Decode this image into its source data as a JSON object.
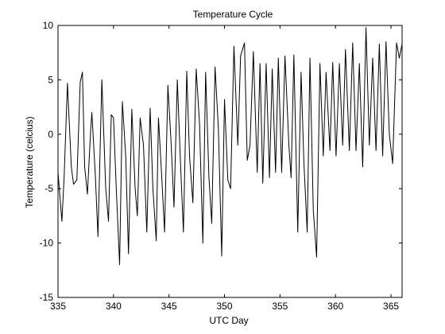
{
  "chart_data": {
    "type": "line",
    "title": "Temperature Cycle",
    "xlabel": "UTC Day",
    "ylabel": "Temperature (celcius)",
    "xlim": [
      335,
      366
    ],
    "ylim": [
      -15,
      10
    ],
    "xticks": [
      335,
      340,
      345,
      350,
      355,
      360,
      365
    ],
    "yticks": [
      -15,
      -10,
      -5,
      0,
      5,
      10
    ],
    "grid": false,
    "line_color": "#000000",
    "series": [
      {
        "values": [
          [
            335.0,
            -3.5
          ],
          [
            335.35,
            -8.0
          ],
          [
            335.55,
            -4.0
          ],
          [
            335.85,
            4.7
          ],
          [
            336.2,
            -3.0
          ],
          [
            336.4,
            -4.6
          ],
          [
            336.7,
            -4.2
          ],
          [
            337.0,
            4.8
          ],
          [
            337.2,
            5.7
          ],
          [
            337.4,
            -3.0
          ],
          [
            337.65,
            -5.5
          ],
          [
            337.95,
            0.5
          ],
          [
            338.05,
            2.0
          ],
          [
            338.35,
            -3.5
          ],
          [
            338.6,
            -9.4
          ],
          [
            338.95,
            5.0
          ],
          [
            339.3,
            -5.0
          ],
          [
            339.55,
            -8.0
          ],
          [
            339.8,
            1.8
          ],
          [
            340.0,
            1.5
          ],
          [
            340.25,
            -5.0
          ],
          [
            340.55,
            -12.0
          ],
          [
            340.8,
            3.0
          ],
          [
            341.1,
            -2.0
          ],
          [
            341.35,
            -11.0
          ],
          [
            341.65,
            2.3
          ],
          [
            341.95,
            -5.0
          ],
          [
            342.15,
            -7.5
          ],
          [
            342.4,
            1.5
          ],
          [
            342.7,
            -1.0
          ],
          [
            343.0,
            -9.0
          ],
          [
            343.3,
            2.4
          ],
          [
            343.55,
            -5.0
          ],
          [
            343.85,
            -9.8
          ],
          [
            344.05,
            1.5
          ],
          [
            344.35,
            -4.0
          ],
          [
            344.6,
            -9.0
          ],
          [
            344.9,
            4.5
          ],
          [
            345.2,
            -1.0
          ],
          [
            345.45,
            -6.7
          ],
          [
            345.75,
            5.0
          ],
          [
            346.05,
            -3.0
          ],
          [
            346.3,
            -9.0
          ],
          [
            346.6,
            5.8
          ],
          [
            346.85,
            -2.0
          ],
          [
            347.15,
            -6.3
          ],
          [
            347.45,
            6.0
          ],
          [
            347.75,
            1.0
          ],
          [
            348.05,
            -10.0
          ],
          [
            348.3,
            5.7
          ],
          [
            348.6,
            -4.0
          ],
          [
            348.85,
            -8.2
          ],
          [
            349.15,
            6.2
          ],
          [
            349.45,
            0.5
          ],
          [
            349.75,
            -11.2
          ],
          [
            350.0,
            3.2
          ],
          [
            350.3,
            -4.2
          ],
          [
            350.55,
            -5.0
          ],
          [
            350.85,
            8.1
          ],
          [
            351.2,
            -1.0
          ],
          [
            351.45,
            7.2
          ],
          [
            351.8,
            8.4
          ],
          [
            352.05,
            -2.4
          ],
          [
            352.3,
            -1.0
          ],
          [
            352.6,
            7.6
          ],
          [
            352.95,
            -3.5
          ],
          [
            353.2,
            6.5
          ],
          [
            353.45,
            -4.5
          ],
          [
            353.75,
            6.5
          ],
          [
            354.05,
            -4.0
          ],
          [
            354.3,
            6.0
          ],
          [
            354.6,
            -3.5
          ],
          [
            354.85,
            7.0
          ],
          [
            355.15,
            -3.5
          ],
          [
            355.45,
            7.2
          ],
          [
            355.8,
            -1.0
          ],
          [
            356.0,
            -4.0
          ],
          [
            356.25,
            7.3
          ],
          [
            356.6,
            -9.0
          ],
          [
            356.9,
            5.7
          ],
          [
            357.15,
            -2.5
          ],
          [
            357.45,
            -9.0
          ],
          [
            357.7,
            7.0
          ],
          [
            358.0,
            -7.0
          ],
          [
            358.3,
            -11.3
          ],
          [
            358.6,
            6.5
          ],
          [
            358.9,
            -2.0
          ],
          [
            359.15,
            5.7
          ],
          [
            359.5,
            -1.5
          ],
          [
            359.75,
            6.6
          ],
          [
            360.05,
            -2.0
          ],
          [
            360.35,
            6.5
          ],
          [
            360.65,
            -1.0
          ],
          [
            360.9,
            7.8
          ],
          [
            361.25,
            -1.5
          ],
          [
            361.55,
            8.4
          ],
          [
            361.85,
            -1.5
          ],
          [
            362.15,
            6.5
          ],
          [
            362.45,
            -3.0
          ],
          [
            362.75,
            9.8
          ],
          [
            363.05,
            -1.0
          ],
          [
            363.35,
            7.0
          ],
          [
            363.65,
            -1.5
          ],
          [
            363.95,
            8.3
          ],
          [
            364.25,
            -2.0
          ],
          [
            364.55,
            8.5
          ],
          [
            364.85,
            0.0
          ],
          [
            365.15,
            -2.7
          ],
          [
            365.5,
            8.4
          ],
          [
            365.75,
            7.0
          ],
          [
            366.0,
            8.3
          ]
        ]
      }
    ]
  }
}
